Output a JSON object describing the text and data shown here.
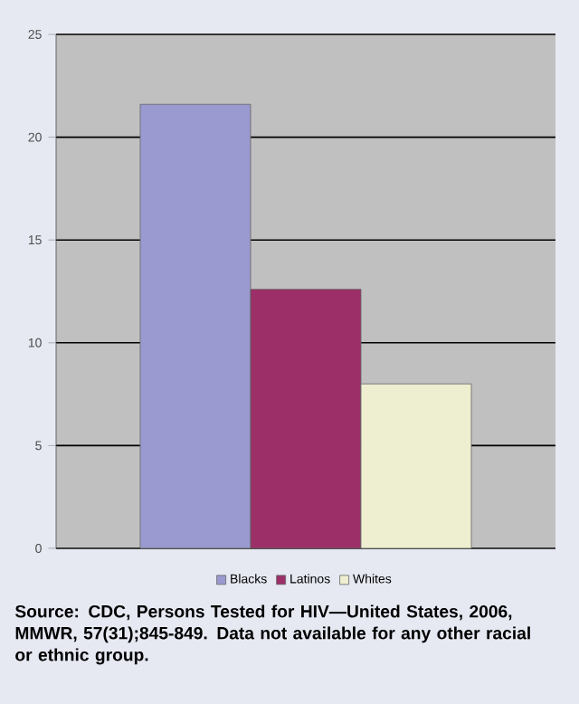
{
  "chart_data": {
    "type": "bar",
    "categories": [
      null
    ],
    "series": [
      {
        "name": "Blacks",
        "color": "#9a9ad0",
        "values": [
          21.6
        ]
      },
      {
        "name": "Latinos",
        "color": "#9c2f68",
        "values": [
          12.6
        ]
      },
      {
        "name": "Whites",
        "color": "#eeeed0",
        "values": [
          8.0
        ]
      }
    ],
    "ylim": [
      0,
      25
    ],
    "yticks": [
      0,
      5,
      10,
      15,
      20,
      25
    ],
    "grid": "y",
    "legend": "bottom",
    "annotations": [
      "Source: CDC, Persons Tested for HIV—United States, 2006, MMWR, 57(31);845-849. Data not available for any other racial or ethnic group."
    ]
  }
}
